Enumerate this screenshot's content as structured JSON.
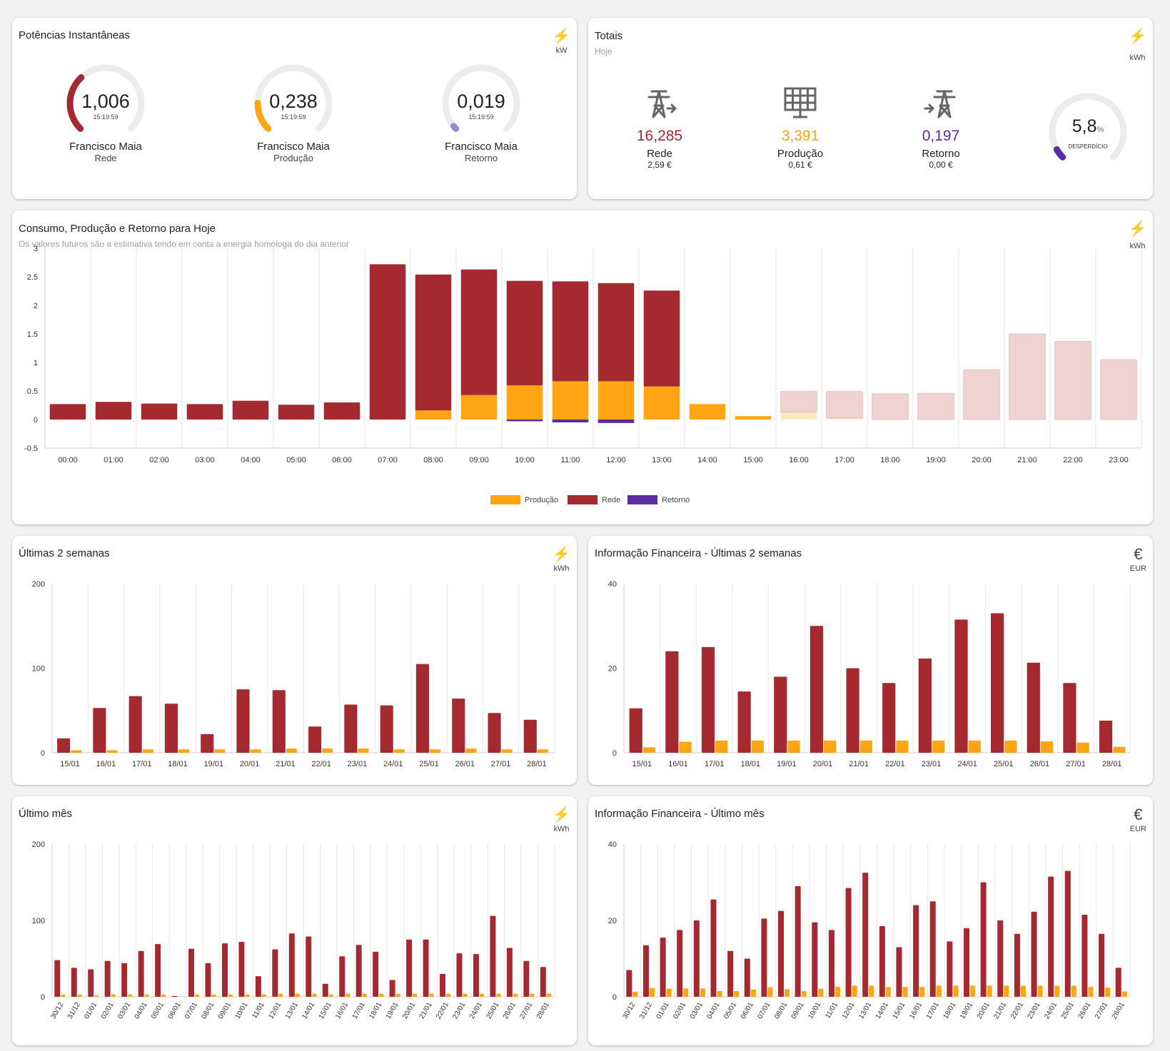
{
  "colors": {
    "rede": "#a52a2f",
    "producao": "#ffa412",
    "retorno": "#5a2ca0",
    "rede_future": "#efd3d3",
    "producao_future": "#fbe8c4",
    "grid": "#e6e6e6"
  },
  "potencias": {
    "title": "Potências Instantâneas",
    "unit_icon": "⚡",
    "unit": "kW",
    "gauges": [
      {
        "value": "1,006",
        "time": "15:19:59",
        "name": "Francisco Maia",
        "sub": "Rede",
        "level": 0.34,
        "color": "#a52a2f"
      },
      {
        "value": "0,238",
        "time": "15:19:59",
        "name": "Francisco Maia",
        "sub": "Produção",
        "level": 0.17,
        "color": "#ffa412"
      },
      {
        "value": "0,019",
        "time": "15:19:59",
        "name": "Francisco Maia",
        "sub": "Retorno",
        "level": 0.02,
        "color": "#9b87c9"
      }
    ]
  },
  "totais": {
    "title": "Totais",
    "subtitle": "Hoje",
    "unit_icon": "⚡",
    "unit": "kWh",
    "items": [
      {
        "icon": "transmission-tower-export-icon",
        "value": "16,285",
        "name": "Rede",
        "cost": "2,59 €",
        "color": "#a52a2f"
      },
      {
        "icon": "solar-panel-icon",
        "value": "3,391",
        "name": "Produção",
        "cost": "0,61 €",
        "color": "#ffa412"
      },
      {
        "icon": "transmission-tower-import-icon",
        "value": "0,197",
        "name": "Retorno",
        "cost": "0,00 €",
        "color": "#5a2ca0"
      }
    ],
    "waste": {
      "value": "5,8",
      "unit": "%",
      "label": "DESPERDÍCIO",
      "level": 0.058,
      "color": "#5a2ca0"
    }
  },
  "hoje": {
    "title": "Consumo, Produção e Retorno para Hoje",
    "subtitle": "Os valores futuros são a estimativa tendo em conta a energia homóloga do dia anterior",
    "unit_icon": "⚡",
    "unit": "kWh",
    "legend": [
      "Produção",
      "Rede",
      "Retorno"
    ]
  },
  "semanas": {
    "title": "Últimas 2 semanas",
    "unit_icon": "⚡",
    "unit": "kWh"
  },
  "fin_semanas": {
    "title": "Informação Financeira - Últimas 2 semanas",
    "unit_icon": "€",
    "unit": "EUR"
  },
  "mes": {
    "title": "Último mês",
    "unit_icon": "⚡",
    "unit": "kWh"
  },
  "fin_mes": {
    "title": "Informação Financeira - Último mês",
    "unit_icon": "€",
    "unit": "EUR"
  },
  "chart_data": [
    {
      "type": "bar",
      "title": "Consumo, Produção e Retorno para Hoje",
      "categories": [
        "00:00",
        "01:00",
        "02:00",
        "03:00",
        "04:00",
        "05:00",
        "06:00",
        "07:00",
        "08:00",
        "09:00",
        "10:00",
        "11:00",
        "12:00",
        "13:00",
        "14:00",
        "15:00",
        "16:00",
        "17:00",
        "18:00",
        "19:00",
        "20:00",
        "21:00",
        "22:00",
        "23:00"
      ],
      "ylim": [
        -0.5,
        3
      ],
      "yticks": [
        3,
        2.5,
        2,
        1.5,
        1,
        0.5,
        0,
        -0.5
      ],
      "ytick_labels": [
        "3",
        "2.5",
        "2",
        "1.5",
        "1",
        "0.5",
        "0",
        "-0.5"
      ],
      "stacked": true,
      "estimated_from_index": 16,
      "series": [
        {
          "name": "Produção",
          "values": [
            0,
            0,
            0,
            0,
            0,
            0,
            0,
            0,
            0.16,
            0.43,
            0.6,
            0.67,
            0.67,
            0.58,
            0.27,
            0.06,
            0.13,
            0.03,
            0,
            0,
            0,
            0,
            0,
            0
          ]
        },
        {
          "name": "Rede",
          "values": [
            0.27,
            0.31,
            0.28,
            0.27,
            0.33,
            0.26,
            0.3,
            2.72,
            2.38,
            2.2,
            1.83,
            1.75,
            1.72,
            1.68,
            0,
            0,
            0.36,
            0.46,
            0.45,
            0.46,
            0.87,
            1.5,
            1.37,
            1.05
          ]
        },
        {
          "name": "Retorno",
          "values": [
            0,
            0,
            0,
            0,
            0,
            0,
            0,
            0,
            0,
            0,
            -0.03,
            -0.05,
            -0.06,
            0,
            0,
            0,
            0,
            0,
            0,
            0,
            0,
            0,
            0,
            0
          ]
        }
      ]
    },
    {
      "type": "bar",
      "title": "Últimas 2 semanas",
      "categories": [
        "15/01",
        "16/01",
        "17/01",
        "18/01",
        "19/01",
        "20/01",
        "21/01",
        "22/01",
        "23/01",
        "24/01",
        "25/01",
        "26/01",
        "27/01",
        "28/01"
      ],
      "ylim": [
        0,
        200
      ],
      "yticks": [
        200,
        100,
        0
      ],
      "ytick_labels": [
        "200",
        "100",
        "0"
      ],
      "series": [
        {
          "name": "Rede",
          "values": [
            17,
            53,
            67,
            58,
            22,
            75,
            74,
            31,
            57,
            56,
            105,
            64,
            47,
            39
          ]
        },
        {
          "name": "Produção",
          "values": [
            3,
            3,
            4,
            4,
            4,
            4,
            5,
            5,
            5,
            4,
            4,
            5,
            4,
            4
          ]
        }
      ]
    },
    {
      "type": "bar",
      "title": "Informação Financeira - Últimas 2 semanas",
      "categories": [
        "15/01",
        "16/01",
        "17/01",
        "18/01",
        "19/01",
        "20/01",
        "21/01",
        "22/01",
        "23/01",
        "24/01",
        "25/01",
        "26/01",
        "27/01",
        "28/01"
      ],
      "ylim": [
        0,
        40
      ],
      "yticks": [
        40,
        20,
        0
      ],
      "ytick_labels": [
        "40",
        "20",
        "0"
      ],
      "series": [
        {
          "name": "Rede",
          "values": [
            10.5,
            24,
            25,
            14.5,
            18,
            30,
            20,
            16.5,
            22.3,
            31.5,
            33,
            21.3,
            16.5,
            7.6
          ]
        },
        {
          "name": "Produção",
          "values": [
            1.3,
            2.6,
            2.9,
            2.9,
            2.9,
            2.9,
            2.9,
            2.9,
            2.9,
            2.9,
            2.9,
            2.7,
            2.4,
            1.4
          ]
        }
      ]
    },
    {
      "type": "bar",
      "title": "Último mês",
      "categories": [
        "30/12",
        "31/12",
        "01/01",
        "02/01",
        "03/01",
        "04/01",
        "05/01",
        "06/01",
        "07/01",
        "08/01",
        "09/01",
        "10/01",
        "11/01",
        "12/01",
        "13/01",
        "14/01",
        "15/01",
        "16/01",
        "17/01",
        "18/01",
        "19/01",
        "20/01",
        "21/01",
        "22/01",
        "23/01",
        "24/01",
        "25/01",
        "26/01",
        "27/01",
        "28/01"
      ],
      "ylim": [
        0,
        200
      ],
      "yticks": [
        200,
        100,
        0
      ],
      "ytick_labels": [
        "200",
        "100",
        "0"
      ],
      "series": [
        {
          "name": "Rede",
          "values": [
            48,
            38,
            36,
            47,
            44,
            60,
            69,
            1,
            63,
            44,
            70,
            72,
            27,
            62,
            83,
            79,
            17,
            53,
            68,
            59,
            22,
            75,
            75,
            30,
            57,
            56,
            106,
            64,
            47,
            39
          ]
        },
        {
          "name": "Produção",
          "values": [
            3,
            3,
            2,
            3,
            3,
            3,
            3,
            0,
            3,
            3,
            3,
            3,
            3,
            4,
            4,
            4,
            3,
            4,
            4,
            4,
            4,
            4,
            4,
            4,
            4,
            4,
            4,
            4,
            4,
            4
          ]
        }
      ]
    },
    {
      "type": "bar",
      "title": "Informação Financeira - Último mês",
      "categories": [
        "30/12",
        "31/12",
        "01/01",
        "02/01",
        "03/01",
        "04/01",
        "05/01",
        "06/01",
        "07/01",
        "08/01",
        "09/01",
        "10/01",
        "11/01",
        "12/01",
        "13/01",
        "14/01",
        "15/01",
        "16/01",
        "17/01",
        "18/01",
        "19/01",
        "20/01",
        "21/01",
        "22/01",
        "23/01",
        "24/01",
        "25/01",
        "26/01",
        "27/01",
        "28/01"
      ],
      "ylim": [
        0,
        40
      ],
      "yticks": [
        40,
        20,
        0
      ],
      "ytick_labels": [
        "40",
        "20",
        "0"
      ],
      "series": [
        {
          "name": "Rede",
          "values": [
            7,
            13.5,
            15.5,
            17.5,
            20,
            25.5,
            12,
            10,
            20.5,
            22.5,
            29,
            19.5,
            17.5,
            28.5,
            32.5,
            18.5,
            13,
            24,
            25,
            14.5,
            18,
            30,
            20,
            16.5,
            22.3,
            31.5,
            33,
            21.5,
            16.5,
            7.6
          ]
        },
        {
          "name": "Produção",
          "values": [
            1.3,
            2.3,
            2.1,
            2.2,
            2.2,
            1.5,
            1.5,
            1.9,
            2.5,
            2,
            1.5,
            2.1,
            2.6,
            2.9,
            2.9,
            2.6,
            2.6,
            2.6,
            2.9,
            2.9,
            2.9,
            2.9,
            2.9,
            2.9,
            2.9,
            2.9,
            2.9,
            2.6,
            2.4,
            1.4
          ]
        }
      ]
    }
  ]
}
